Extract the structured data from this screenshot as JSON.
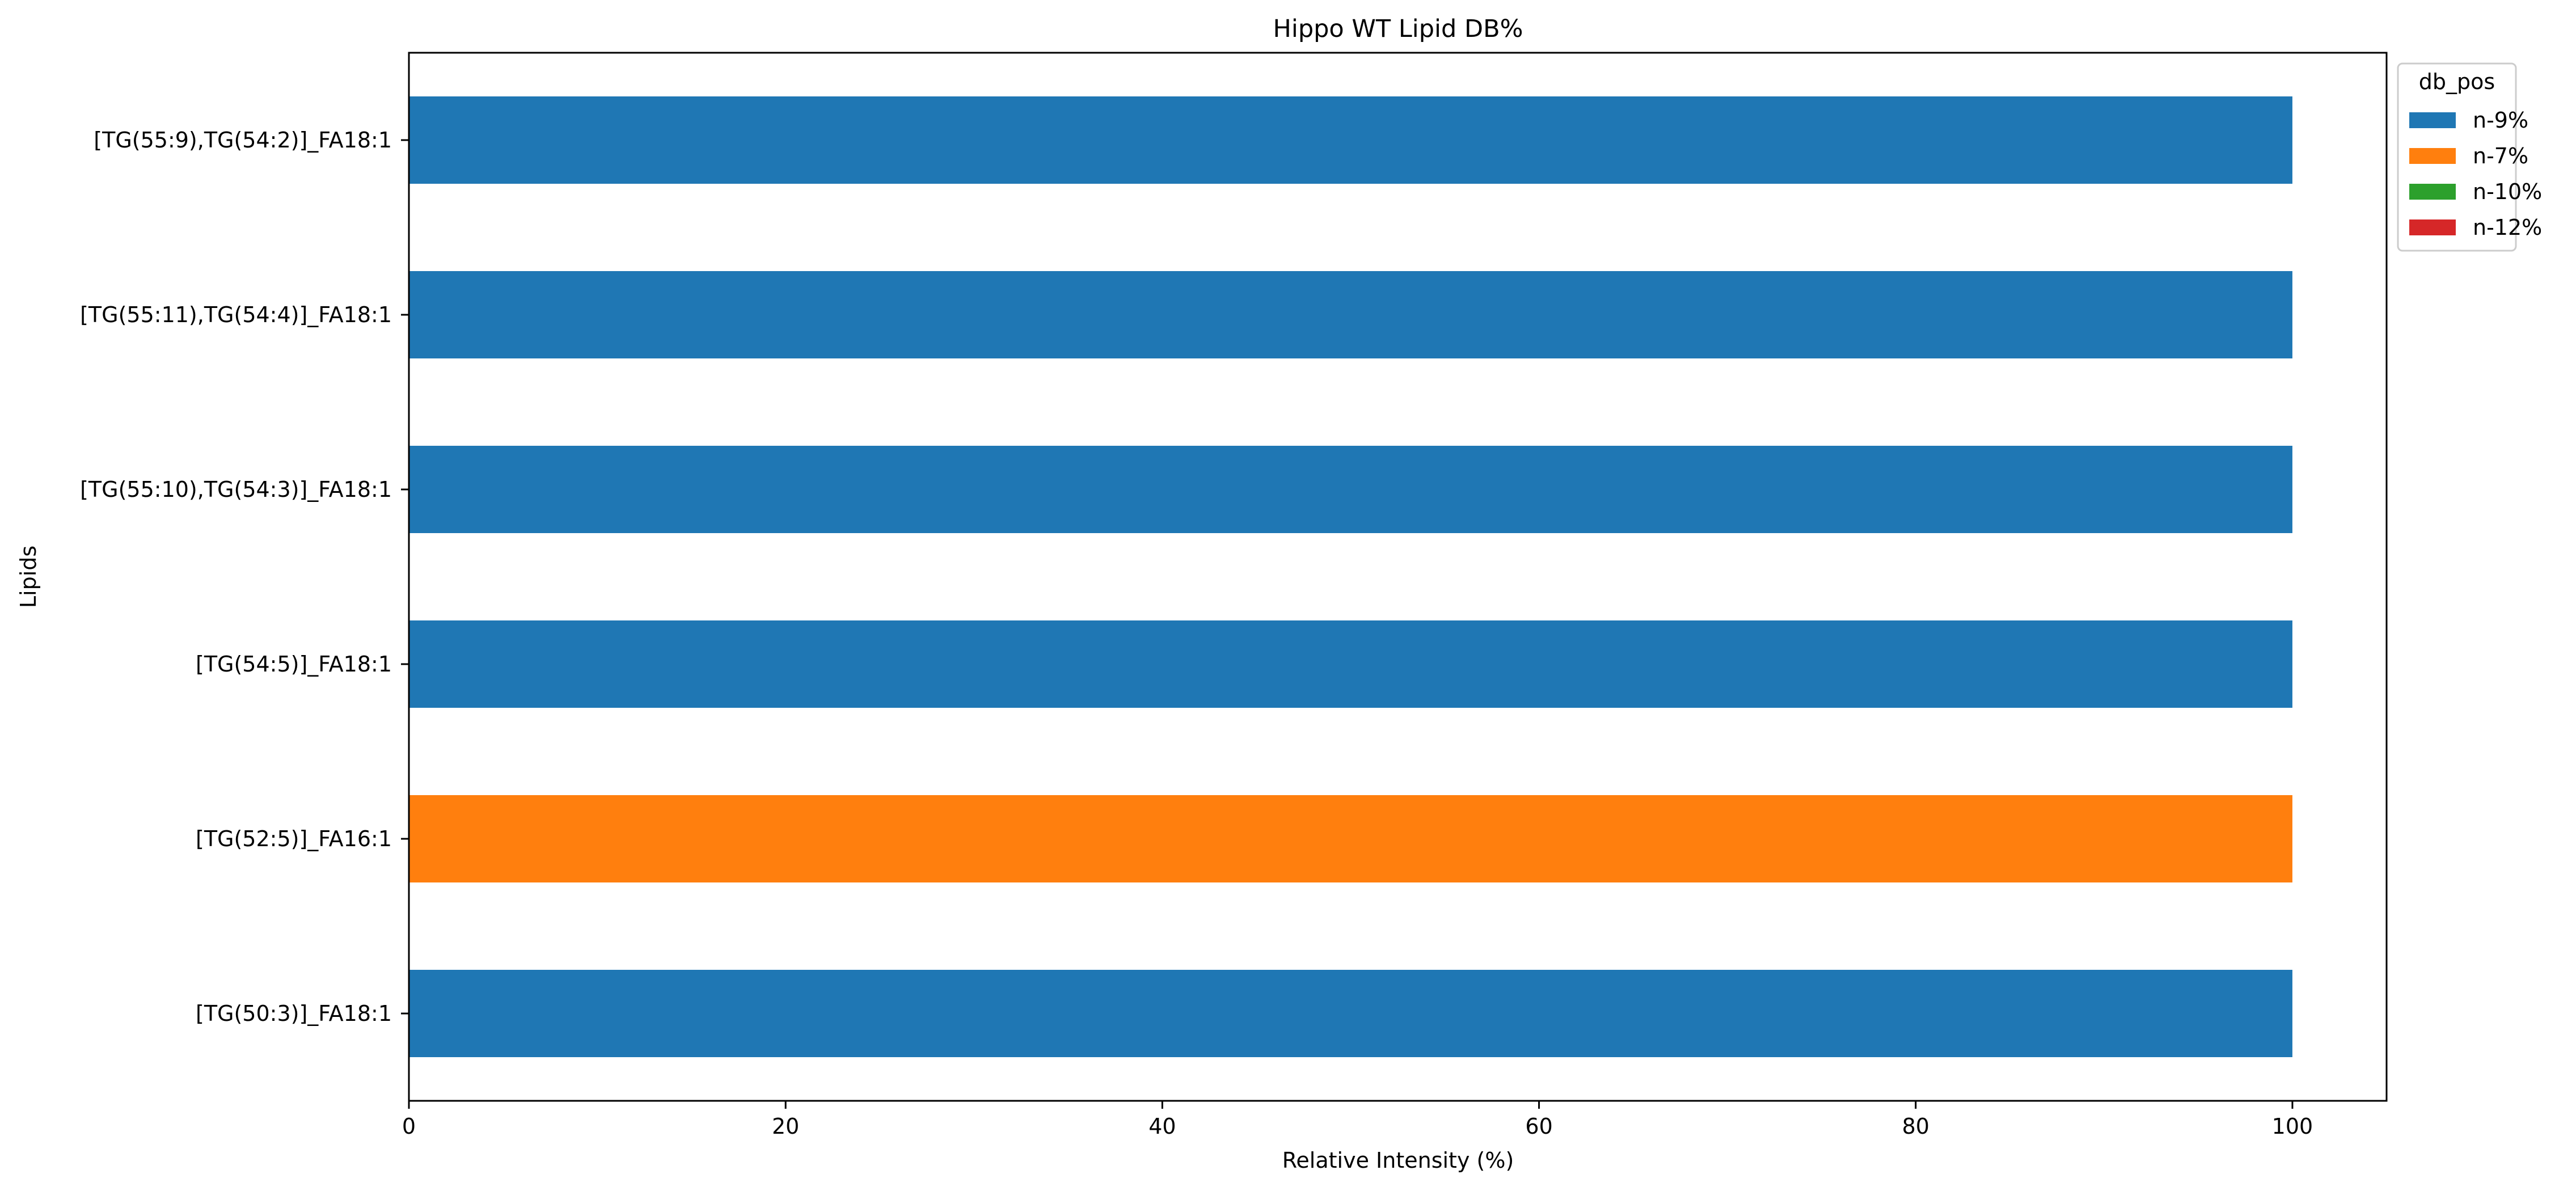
{
  "chart_data": {
    "type": "bar",
    "orientation": "horizontal",
    "stacked": true,
    "title": "Hippo WT Lipid DB%",
    "xlabel": "Relative Intensity (%)",
    "ylabel": "Lipids",
    "xlim": [
      0,
      105
    ],
    "xticks": [
      0,
      20,
      40,
      60,
      80,
      100
    ],
    "grid": false,
    "legend": {
      "title": "db_pos",
      "placement": "outside-top-right"
    },
    "categories": [
      "[TG(50:3)]_FA18:1",
      "[TG(52:5)]_FA16:1",
      "[TG(54:5)]_FA18:1",
      "[TG(55:10),TG(54:3)]_FA18:1",
      "[TG(55:11),TG(54:4)]_FA18:1",
      "[TG(55:9),TG(54:2)]_FA18:1"
    ],
    "series": [
      {
        "name": "n-9%",
        "color": "#1f77b4",
        "values": [
          100,
          0,
          100,
          100,
          100,
          100
        ]
      },
      {
        "name": "n-7%",
        "color": "#ff7f0e",
        "values": [
          0,
          100,
          0,
          0,
          0,
          0
        ]
      },
      {
        "name": "n-10%",
        "color": "#2ca02c",
        "values": [
          0,
          0,
          0,
          0,
          0,
          0
        ]
      },
      {
        "name": "n-12%",
        "color": "#d62728",
        "values": [
          0,
          0,
          0,
          0,
          0,
          0
        ]
      }
    ]
  }
}
